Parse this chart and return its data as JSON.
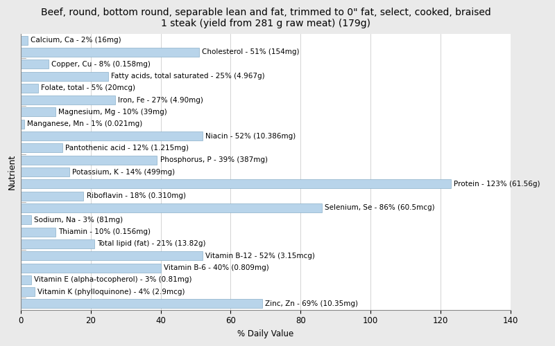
{
  "title": "Beef, round, bottom round, separable lean and fat, trimmed to 0\" fat, select, cooked, braised\n1 steak (yield from 281 g raw meat) (179g)",
  "xlabel": "% Daily Value",
  "ylabel": "Nutrient",
  "nutrients": [
    "Calcium, Ca - 2% (16mg)",
    "Cholesterol - 51% (154mg)",
    "Copper, Cu - 8% (0.158mg)",
    "Fatty acids, total saturated - 25% (4.967g)",
    "Folate, total - 5% (20mcg)",
    "Iron, Fe - 27% (4.90mg)",
    "Magnesium, Mg - 10% (39mg)",
    "Manganese, Mn - 1% (0.021mg)",
    "Niacin - 52% (10.386mg)",
    "Pantothenic acid - 12% (1.215mg)",
    "Phosphorus, P - 39% (387mg)",
    "Potassium, K - 14% (499mg)",
    "Protein - 123% (61.56g)",
    "Riboflavin - 18% (0.310mg)",
    "Selenium, Se - 86% (60.5mcg)",
    "Sodium, Na - 3% (81mg)",
    "Thiamin - 10% (0.156mg)",
    "Total lipid (fat) - 21% (13.82g)",
    "Vitamin B-12 - 52% (3.15mcg)",
    "Vitamin B-6 - 40% (0.809mg)",
    "Vitamin E (alpha-tocopherol) - 3% (0.81mg)",
    "Vitamin K (phylloquinone) - 4% (2.9mcg)",
    "Zinc, Zn - 69% (10.35mg)"
  ],
  "values": [
    2,
    51,
    8,
    25,
    5,
    27,
    10,
    1,
    52,
    12,
    39,
    14,
    123,
    18,
    86,
    3,
    10,
    21,
    52,
    40,
    3,
    4,
    69
  ],
  "bar_color": "#b8d4ea",
  "bar_edge_color": "#8aafc8",
  "background_color": "#eaeaea",
  "plot_background_color": "#ffffff",
  "xlim": [
    0,
    140
  ],
  "xticks": [
    0,
    20,
    40,
    60,
    80,
    100,
    120,
    140
  ],
  "title_fontsize": 10,
  "label_fontsize": 7.5,
  "tick_fontsize": 8.5,
  "ylabel_fontsize": 9
}
